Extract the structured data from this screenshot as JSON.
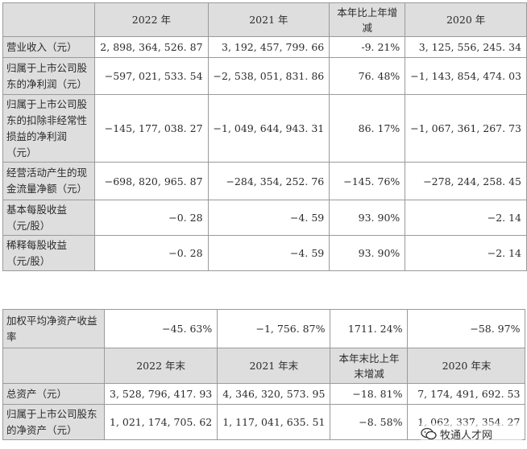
{
  "table1": {
    "headers": [
      "",
      "2022 年",
      "2021 年",
      "本年比上年增减",
      "2020 年"
    ],
    "rows": [
      {
        "label": "营业收入（元）",
        "v2022": "2, 898, 364, 526. 87",
        "v2021": "3, 192, 457, 799. 66",
        "change": "-9. 21%",
        "v2020": "3, 125, 556, 245. 34"
      },
      {
        "label": "归属于上市公司股东的净利润（元）",
        "v2022": "−597, 021, 533. 54",
        "v2021": "−2, 538, 051, 831. 86",
        "change": "76. 48%",
        "v2020": "−1, 143, 854, 474. 03"
      },
      {
        "label": "归属于上市公司股东的扣除非经常性损益的净利润（元）",
        "v2022": "−145, 177, 038. 27",
        "v2021": "−1, 049, 644, 943. 31",
        "change": "86. 17%",
        "v2020": "−1, 067, 361, 267. 73"
      },
      {
        "label": "经营活动产生的现金流量净额（元）",
        "v2022": "−698, 820, 965. 87",
        "v2021": "−284, 354, 252. 76",
        "change": "−145. 76%",
        "v2020": "−278, 244, 258. 45"
      },
      {
        "label": "基本每股收益（元/股）",
        "v2022": "−0. 28",
        "v2021": "−4. 59",
        "change": "93. 90%",
        "v2020": "−2. 14"
      },
      {
        "label": "稀释每股收益（元/股）",
        "v2022": "−0. 28",
        "v2021": "−4. 59",
        "change": "93. 90%",
        "v2020": "−2. 14"
      }
    ]
  },
  "table2": {
    "roe_row": {
      "label": "加权平均净资产收益率",
      "v2022": "−45. 63%",
      "v2021": "−1, 756. 87%",
      "change": "1711. 24%",
      "v2020": "−58. 97%"
    },
    "headers": [
      "",
      "2022 年末",
      "2021 年末",
      "本年末比上年末增减",
      "2020 年末"
    ],
    "rows": [
      {
        "label": "总资产（元）",
        "v2022": "3, 528, 796, 417. 93",
        "v2021": "4, 346, 320, 573. 95",
        "change": "−18. 81%",
        "v2020": "7, 174, 491, 692. 53"
      },
      {
        "label": "归属于上市公司股东的净资产（元）",
        "v2022": "1, 021, 174, 705. 62",
        "v2021": "1, 117, 041, 635. 51",
        "change": "−8. 58%",
        "v2020": "1, 062, 337, 354. 27"
      }
    ]
  },
  "watermark": {
    "text": "牧通人才网",
    "icon": "wechat-icon"
  }
}
